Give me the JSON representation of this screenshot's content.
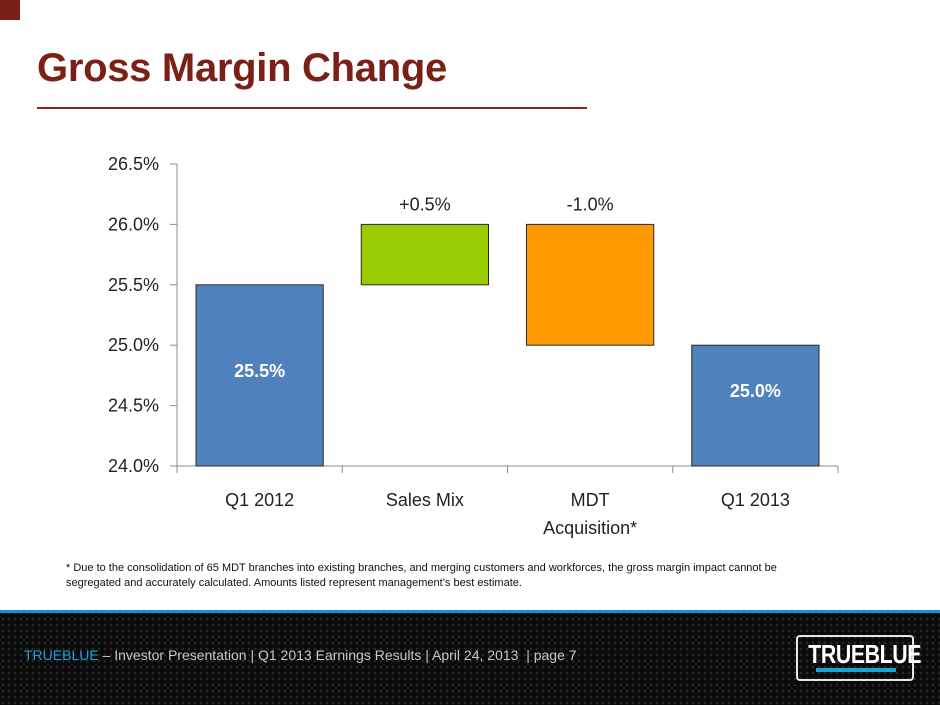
{
  "slide": {
    "title": "Gross Margin Change",
    "footnote": "* Due to the consolidation of 65 MDT branches into existing branches, and merging  customers and workforces, the gross margin impact cannot be segregated and accurately calculated. Amounts listed represent management’s best estimate.",
    "footer": {
      "brand": "TRUEBLUE",
      "text": " – Investor Presentation | Q1 2013 Earnings Results | April 24, 2013  | page 7",
      "logo_text": "TRUEBLUE"
    },
    "colors": {
      "title": "#7a2016",
      "accent_blue": "#1ea0dc"
    }
  },
  "chart_data": {
    "type": "bar",
    "subtype": "waterfall",
    "title": "Gross Margin Change",
    "xlabel": "",
    "ylabel": "",
    "categories": [
      "Q1 2012",
      "Sales Mix",
      "MDT Acquisition*",
      "Q1 2013"
    ],
    "category_lines": [
      [
        "Q1 2012"
      ],
      [
        "Sales Mix"
      ],
      [
        "MDT",
        "Acquisition*"
      ],
      [
        "Q1 2013"
      ]
    ],
    "bars": [
      {
        "category": "Q1 2012",
        "kind": "total",
        "start": 24.0,
        "end": 25.5,
        "label": "25.5%",
        "color": "#4f81bd"
      },
      {
        "category": "Sales Mix",
        "kind": "delta",
        "start": 25.5,
        "end": 26.0,
        "label": "+0.5%",
        "color": "#99cc00"
      },
      {
        "category": "MDT Acquisition*",
        "kind": "delta",
        "start": 26.0,
        "end": 25.0,
        "label": "-1.0%",
        "color": "#ff9900"
      },
      {
        "category": "Q1 2013",
        "kind": "total",
        "start": 24.0,
        "end": 25.0,
        "label": "25.0%",
        "color": "#4f81bd"
      }
    ],
    "values": [
      25.5,
      0.5,
      -1.0,
      25.0
    ],
    "ylim": [
      24.0,
      26.5
    ],
    "yticks": [
      24.0,
      24.5,
      25.0,
      25.5,
      26.0,
      26.5
    ],
    "ytick_labels": [
      "24.0%",
      "24.5%",
      "25.0%",
      "25.5%",
      "26.0%",
      "26.5%"
    ],
    "grid": false,
    "legend": "none"
  }
}
